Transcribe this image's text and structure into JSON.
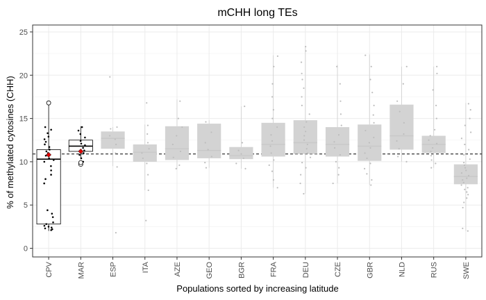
{
  "chart_data": {
    "type": "box",
    "title": "mCHH long TEs",
    "xlabel": "Populations sorted by increasing latitude",
    "ylabel": "% of methylated cytosines (CHH)",
    "ylim": [
      -1,
      25.8
    ],
    "yticks": [
      0,
      5,
      10,
      15,
      20,
      25
    ],
    "grid": true,
    "legend": "none",
    "reference_line": 10.9,
    "categories": [
      "CPV",
      "MAR",
      "ESP",
      "ITA",
      "AZE",
      "GEO",
      "BGR",
      "FRA",
      "DEU",
      "CZE",
      "GBR",
      "NLD",
      "RUS",
      "SWE"
    ],
    "boxes": [
      {
        "name": "CPV",
        "q1": 2.8,
        "median": 10.3,
        "q3": 11.4,
        "whisker_low": 2.0,
        "whisker_high": 16.8,
        "highlight": true,
        "mean": 10.8,
        "outliers": [
          16.8
        ],
        "points": [
          2.1,
          2.2,
          2.3,
          2.4,
          2.5,
          2.6,
          2.8,
          3.0,
          3.6,
          4.0,
          4.4,
          7.5,
          8.0,
          8.5,
          9.0,
          9.5,
          10.0,
          10.2,
          10.4,
          10.7,
          11.0,
          11.2,
          11.4,
          11.7,
          12.0,
          12.3,
          12.6,
          12.9,
          13.3,
          13.7,
          14.0
        ]
      },
      {
        "name": "MAR",
        "q1": 11.2,
        "median": 11.8,
        "q3": 12.5,
        "whisker_low": 10.3,
        "whisker_high": 14.1,
        "highlight": true,
        "mean": 11.2,
        "outliers": [
          9.7,
          9.9
        ],
        "points": [
          9.6,
          9.8,
          10.0,
          10.4,
          10.8,
          11.0,
          11.3,
          11.6,
          11.9,
          12.1,
          12.4,
          12.8,
          13.2,
          13.6,
          14.0
        ]
      },
      {
        "name": "ESP",
        "q1": 11.5,
        "median": 12.7,
        "q3": 13.5,
        "whisker_low": 9.5,
        "whisker_high": 14.0,
        "highlight": false,
        "points": [
          1.8,
          9.4,
          11.0,
          12.0,
          12.6,
          13.0,
          13.8,
          14.0,
          19.8
        ]
      },
      {
        "name": "ITA",
        "q1": 10.0,
        "median": 11.1,
        "q3": 12.0,
        "whisker_low": 6.7,
        "whisker_high": 14.3,
        "highlight": false,
        "points": [
          3.2,
          6.7,
          8.5,
          9.8,
          10.4,
          11.0,
          11.5,
          12.2,
          13.2,
          14.2,
          16.8
        ]
      },
      {
        "name": "AZE",
        "q1": 10.2,
        "median": 11.5,
        "q3": 14.1,
        "whisker_low": 9.2,
        "whisker_high": 17.2,
        "highlight": false,
        "points": [
          9.2,
          9.6,
          10.5,
          11.2,
          12.0,
          13.0,
          14.0,
          15.0,
          17.0
        ]
      },
      {
        "name": "GEO",
        "q1": 10.4,
        "median": 11.3,
        "q3": 14.4,
        "whisker_low": 9.3,
        "whisker_high": 14.8,
        "highlight": false,
        "points": [
          9.3,
          9.9,
          10.6,
          11.4,
          12.2,
          13.4,
          14.6
        ]
      },
      {
        "name": "BGR",
        "q1": 10.3,
        "median": 10.7,
        "q3": 11.7,
        "whisker_low": 9.2,
        "whisker_high": 16.4,
        "highlight": false,
        "points": [
          9.2,
          9.8,
          10.4,
          10.9,
          11.3,
          12.2,
          16.4
        ]
      },
      {
        "name": "FRA",
        "q1": 10.6,
        "median": 12.0,
        "q3": 14.5,
        "whisker_low": 7.0,
        "whisker_high": 22.3,
        "highlight": false,
        "points": [
          7.0,
          7.9,
          8.9,
          9.6,
          10.2,
          11.0,
          11.8,
          12.4,
          13.1,
          14.0,
          15.0,
          16.0,
          17.5,
          19.0,
          21.0,
          22.2
        ]
      },
      {
        "name": "DEU",
        "q1": 10.9,
        "median": 12.2,
        "q3": 14.8,
        "whisker_low": 6.3,
        "whisker_high": 23.3,
        "highlight": false,
        "points": [
          6.3,
          7.5,
          8.5,
          9.3,
          9.9,
          10.5,
          11.0,
          11.5,
          12.0,
          12.5,
          13.0,
          13.5,
          14.0,
          14.6,
          15.5,
          16.5,
          17.5,
          18.5,
          19.5,
          20.2,
          21.5,
          22.8,
          23.3
        ]
      },
      {
        "name": "CZE",
        "q1": 10.6,
        "median": 12.0,
        "q3": 14.0,
        "whisker_low": 7.5,
        "whisker_high": 21.2,
        "highlight": false,
        "points": [
          7.5,
          8.5,
          9.3,
          10.0,
          10.8,
          11.6,
          12.3,
          13.1,
          14.2,
          15.5,
          17.0,
          19.0,
          21.0
        ]
      },
      {
        "name": "GBR",
        "q1": 10.1,
        "median": 11.8,
        "q3": 14.3,
        "whisker_low": 7.3,
        "whisker_high": 22.4,
        "highlight": false,
        "points": [
          7.3,
          7.9,
          8.6,
          9.2,
          9.8,
          10.4,
          11.0,
          11.6,
          12.2,
          12.8,
          13.6,
          14.5,
          15.4,
          16.5,
          18.0,
          19.5,
          21.0,
          22.3
        ]
      },
      {
        "name": "NLD",
        "q1": 11.4,
        "median": 13.0,
        "q3": 16.6,
        "whisker_low": 10.0,
        "whisker_high": 21.0,
        "highlight": false,
        "points": [
          10.0,
          10.6,
          11.5,
          12.4,
          13.2,
          14.5,
          15.8,
          17.0,
          19.0,
          21.0
        ]
      },
      {
        "name": "RUS",
        "q1": 11.0,
        "median": 12.0,
        "q3": 13.0,
        "whisker_low": 9.3,
        "whisker_high": 21.0,
        "highlight": false,
        "points": [
          9.3,
          9.8,
          10.2,
          10.7,
          11.2,
          11.6,
          12.1,
          12.5,
          13.0,
          13.7,
          15.0,
          16.5,
          18.3,
          20.2,
          21.0
        ]
      },
      {
        "name": "SWE",
        "q1": 7.4,
        "median": 8.3,
        "q3": 9.7,
        "whisker_low": 2.0,
        "whisker_high": 16.8,
        "highlight": false,
        "points": [
          2.0,
          2.3,
          4.7,
          5.3,
          5.8,
          6.2,
          6.5,
          6.8,
          7.0,
          7.3,
          7.6,
          7.9,
          8.1,
          8.4,
          8.7,
          9.0,
          9.3,
          9.6,
          9.9,
          10.3,
          10.8,
          11.4,
          12.0,
          12.7,
          13.4,
          14.2,
          15.0,
          16.0,
          16.7
        ]
      }
    ]
  },
  "colors": {
    "background": "#ffffff",
    "gridline": "#ebebeb",
    "panel_border": "#333333",
    "faded_box_fill": "#d3d3d3",
    "faded_median": "#c8c8c8",
    "faded_point": "#bdbdbd",
    "highlight_box_fill": "#ffffff",
    "highlight_box_stroke": "#000000",
    "highlight_point": "#000000",
    "mean_marker": "#dd0000",
    "reference_line": "#000000"
  }
}
